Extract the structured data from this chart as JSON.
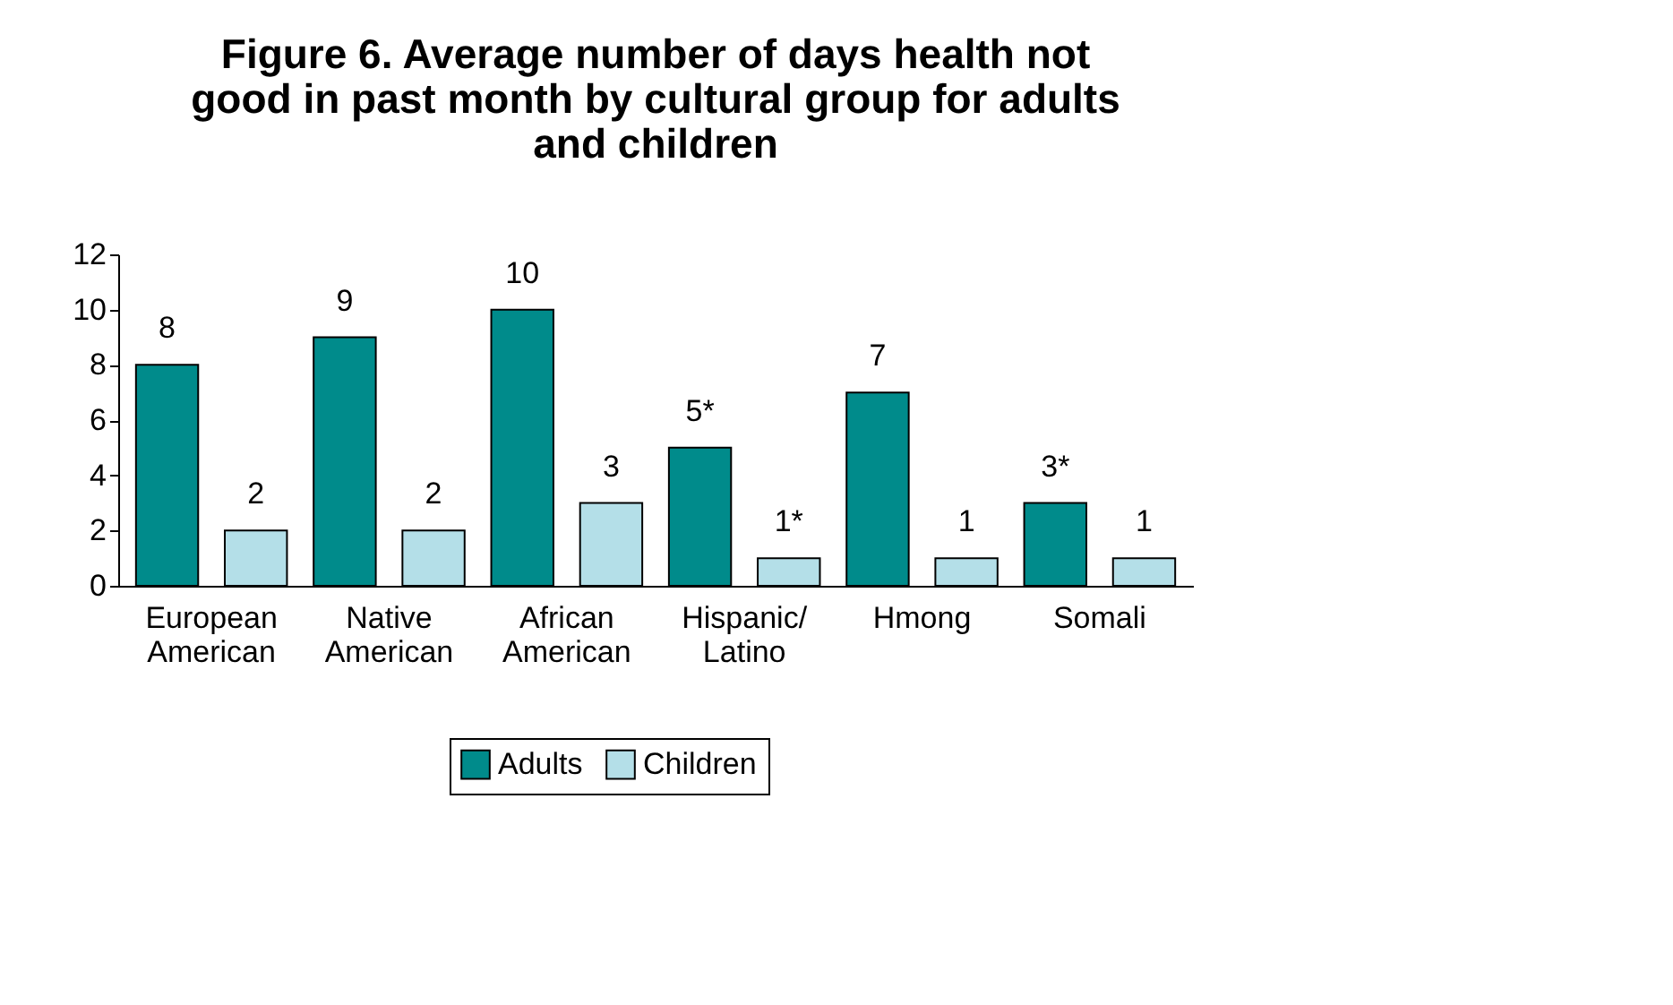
{
  "chart_data": {
    "type": "bar",
    "title": "Figure 6.  Average number of days health not\ngood in past month by cultural group for adults\nand children",
    "categories": [
      "European\nAmerican",
      "Native\nAmerican",
      "African\nAmerican",
      "Hispanic/\nLatino",
      "Hmong",
      "Somali"
    ],
    "series": [
      {
        "name": "Adults",
        "color": "#008b8b",
        "values": [
          8,
          9,
          10,
          5,
          7,
          3
        ],
        "value_labels": [
          "8",
          "9",
          "10",
          "5*",
          "7",
          "3*"
        ]
      },
      {
        "name": "Children",
        "color": "#b4dfe8",
        "values": [
          2,
          2,
          3,
          1,
          1,
          1
        ],
        "value_labels": [
          "2",
          "2",
          "3",
          "1*",
          "1",
          "1"
        ]
      }
    ],
    "ylim": [
      0,
      12
    ],
    "yticks": [
      0,
      2,
      4,
      6,
      8,
      10,
      12
    ],
    "grid": false,
    "legend": "bottom"
  }
}
